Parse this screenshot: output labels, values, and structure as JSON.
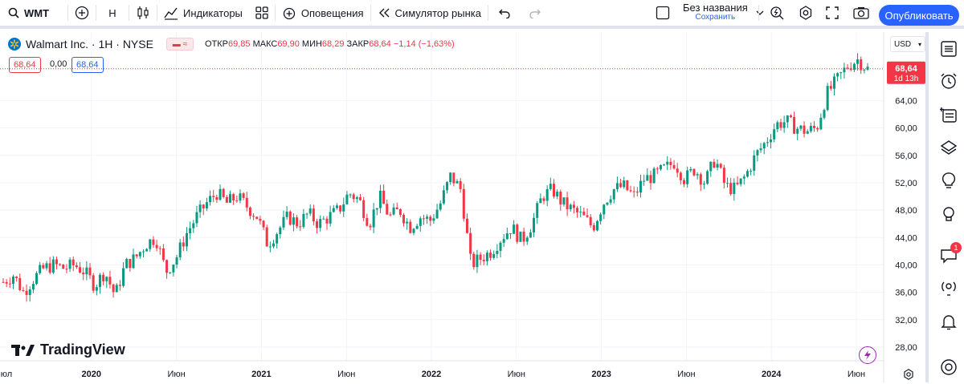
{
  "toolbar": {
    "symbol": "WMT",
    "interval": "Н",
    "indicators_label": "Индикаторы",
    "alerts_label": "Оповещения",
    "replay_label": "Симулятор рынка",
    "layout_name": "Без названия",
    "layout_save": "Сохранить",
    "publish_label": "Опубликовать"
  },
  "legend": {
    "title": "Walmart Inc. · 1H · NYSE",
    "open_label": "ОТКР",
    "open": "69,85",
    "high_label": "МАКС",
    "high": "69,90",
    "low_label": "МИН",
    "low": "68,29",
    "close_label": "ЗАКР",
    "close": "68,64",
    "change": "−1,14 (−1,63%)",
    "sell": "68,64",
    "spread": "0,00",
    "buy": "68,64"
  },
  "price_axis": {
    "currency": "USD",
    "ticks": [
      "64,00",
      "60,00",
      "56,00",
      "52,00",
      "48,00",
      "44,00",
      "40,00",
      "36,00",
      "32,00",
      "28,00"
    ],
    "last_price": "68,64",
    "countdown": "1d 13h"
  },
  "time_axis": {
    "labels": [
      "юл",
      "2020",
      "Июн",
      "2021",
      "Июн",
      "2022",
      "Июн",
      "2023",
      "Июн",
      "2024",
      "Июн"
    ]
  },
  "watermark": "TradingView",
  "notifications_badge": "1",
  "colors": {
    "up": "#089981",
    "down": "#f23645",
    "accent": "#2962ff"
  },
  "chart_data": {
    "type": "candlestick",
    "ylim": [
      26,
      74
    ],
    "close_path": [
      37.5,
      38.5,
      36,
      38,
      39.5,
      40,
      39.5,
      40,
      39,
      37,
      39,
      35.5,
      40,
      41,
      43,
      44,
      39,
      41,
      44.5,
      47,
      49,
      50.5,
      49,
      50,
      48.5,
      47,
      43,
      45,
      47,
      46,
      47.5,
      46,
      47,
      48,
      50.5,
      49.5,
      46,
      50,
      47,
      48,
      45.5,
      47,
      46.5,
      49,
      53,
      51,
      40,
      41,
      42,
      44,
      45.5,
      43.5,
      46,
      50,
      51,
      49,
      48,
      47,
      45.5,
      49,
      51,
      51.5,
      50,
      52.5,
      53,
      54,
      55,
      52.5,
      54,
      52,
      55.5,
      51.5,
      51,
      53,
      56,
      58,
      60.5,
      61,
      60,
      59.5,
      60,
      65,
      67,
      69,
      70,
      68.6
    ]
  }
}
